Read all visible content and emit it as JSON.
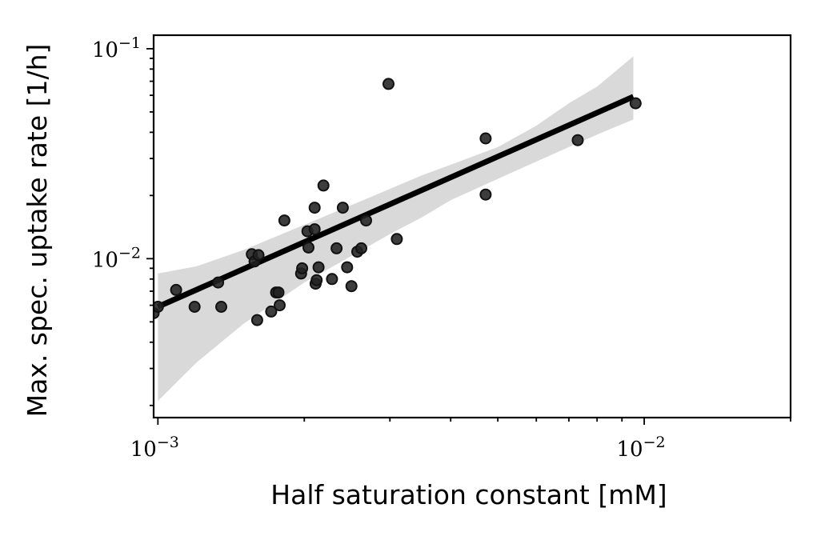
{
  "chart_data": {
    "type": "scatter",
    "xlabel": "Half saturation constant [mM]",
    "ylabel": "Max. spec. uptake rate [1/h]",
    "xscale": "log",
    "yscale": "log",
    "xlim": [
      0.00098,
      0.02
    ],
    "ylim": [
      0.00175,
      0.116
    ],
    "grid": false,
    "x_tick_labels": [
      {
        "value": 0.001,
        "base": "10",
        "exp": "−3"
      },
      {
        "value": 0.01,
        "base": "10",
        "exp": "−2"
      }
    ],
    "y_tick_labels": [
      {
        "value": 0.01,
        "base": "10",
        "exp": "−2"
      },
      {
        "value": 0.1,
        "base": "10",
        "exp": "−1"
      }
    ],
    "points": [
      [
        0.00098,
        0.0055
      ],
      [
        0.001,
        0.0059
      ],
      [
        0.00109,
        0.0071
      ],
      [
        0.00119,
        0.0059
      ],
      [
        0.00133,
        0.0077
      ],
      [
        0.00135,
        0.0059
      ],
      [
        0.00156,
        0.0105
      ],
      [
        0.00158,
        0.0097
      ],
      [
        0.00161,
        0.0104
      ],
      [
        0.0016,
        0.0051
      ],
      [
        0.00171,
        0.0056
      ],
      [
        0.00175,
        0.0069
      ],
      [
        0.00177,
        0.0069
      ],
      [
        0.00178,
        0.006
      ],
      [
        0.00182,
        0.0152
      ],
      [
        0.00197,
        0.0085
      ],
      [
        0.00198,
        0.009
      ],
      [
        0.00203,
        0.0135
      ],
      [
        0.00204,
        0.0113
      ],
      [
        0.0021,
        0.0175
      ],
      [
        0.0021,
        0.0138
      ],
      [
        0.00211,
        0.0076
      ],
      [
        0.00212,
        0.0079
      ],
      [
        0.00214,
        0.0091
      ],
      [
        0.00219,
        0.0223
      ],
      [
        0.00228,
        0.008
      ],
      [
        0.00233,
        0.0112
      ],
      [
        0.0024,
        0.0175
      ],
      [
        0.00245,
        0.0091
      ],
      [
        0.0025,
        0.0074
      ],
      [
        0.00257,
        0.0108
      ],
      [
        0.00262,
        0.0112
      ],
      [
        0.00268,
        0.0152
      ],
      [
        0.00298,
        0.068
      ],
      [
        0.0031,
        0.0124
      ],
      [
        0.00472,
        0.0374
      ],
      [
        0.00472,
        0.0202
      ],
      [
        0.0073,
        0.0367
      ],
      [
        0.0096,
        0.055
      ]
    ],
    "fit_line": {
      "x": [
        0.001,
        0.0095
      ],
      "y": [
        0.0059,
        0.0591
      ]
    },
    "confidence_band": {
      "x": [
        0.001,
        0.0012,
        0.0015,
        0.002,
        0.0025,
        0.003,
        0.0035,
        0.004,
        0.005,
        0.006,
        0.007,
        0.008,
        0.0095
      ],
      "upper": [
        0.0085,
        0.0092,
        0.011,
        0.0145,
        0.018,
        0.0215,
        0.025,
        0.028,
        0.034,
        0.043,
        0.055,
        0.066,
        0.092
      ],
      "lower": [
        0.0021,
        0.0032,
        0.0049,
        0.0077,
        0.0103,
        0.0131,
        0.0158,
        0.019,
        0.024,
        0.029,
        0.034,
        0.039,
        0.046
      ]
    },
    "colors": {
      "points": "#222222",
      "fit": "#000000",
      "band": "#d9d9d9"
    }
  }
}
